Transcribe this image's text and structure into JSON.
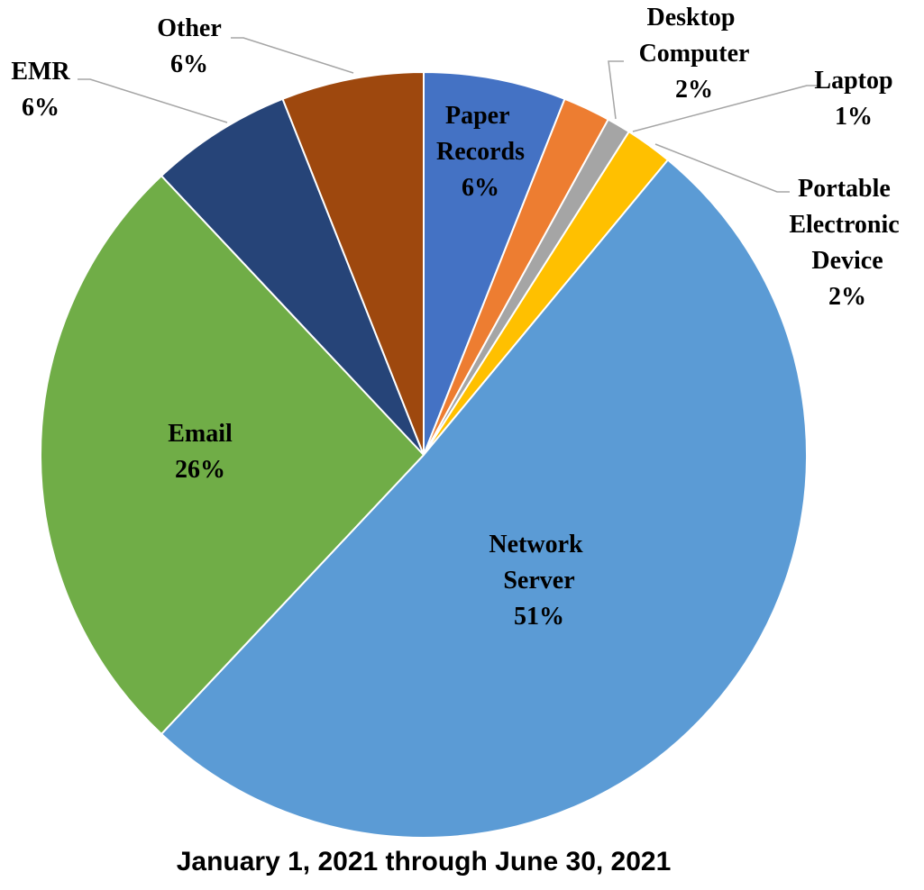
{
  "chart_data": {
    "type": "pie",
    "title": "January 1, 2021 through June 30, 2021",
    "categories": [
      "Paper Records",
      "Desktop Computer",
      "Laptop",
      "Portable Electronic Device",
      "Network Server",
      "Email",
      "EMR",
      "Other"
    ],
    "values": [
      6,
      2,
      1,
      2,
      51,
      26,
      6,
      6
    ],
    "value_labels": [
      "6%",
      "2%",
      "1%",
      "2%",
      "51%",
      "26%",
      "6%",
      "6%"
    ],
    "colors": [
      "#4472c4",
      "#ed7d31",
      "#a5a5a5",
      "#ffc000",
      "#5b9bd5",
      "#70ad47",
      "#264478",
      "#9e480e"
    ]
  }
}
